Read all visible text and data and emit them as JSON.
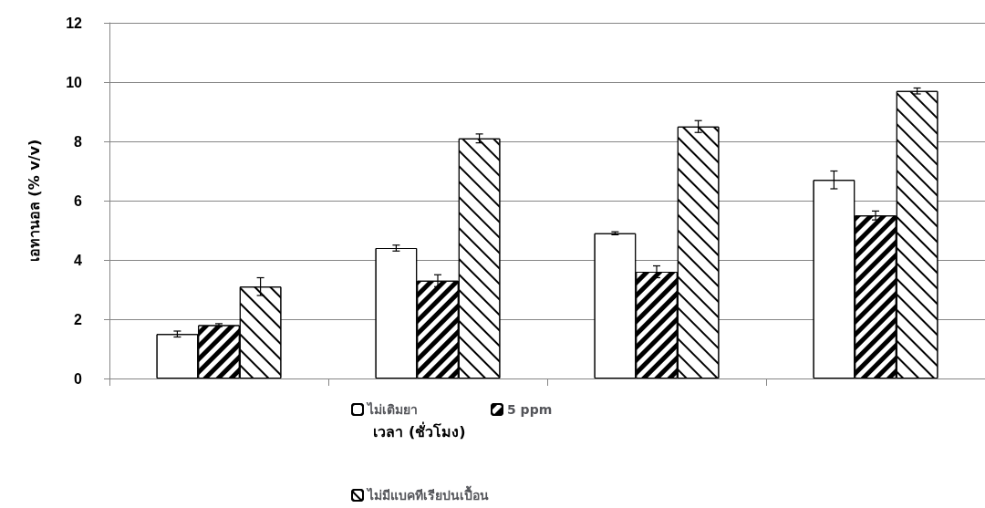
{
  "chart_data": {
    "type": "bar",
    "xlabel": "เวลา (ชั่วโมง)",
    "ylabel": "เอทานอล (% v/v)",
    "categories": [
      null,
      null,
      null,
      null
    ],
    "series": [
      {
        "name": "ไม่เติมยา",
        "color": "#ffffff",
        "values": [
          1.5,
          4.4,
          4.9,
          6.7
        ],
        "errors": [
          0.1,
          0.1,
          0.05,
          0.3
        ]
      },
      {
        "name": "5 ppm",
        "color": "#ffffff",
        "values": [
          1.8,
          3.3,
          3.6,
          5.5
        ],
        "errors": [
          0.05,
          0.2,
          0.2,
          0.15
        ]
      },
      {
        "name": "ไม่มีแบคทีเรียปนเปื้อน",
        "color": "#ffffff",
        "values": [
          3.1,
          8.1,
          8.5,
          9.7
        ],
        "errors": [
          0.3,
          0.15,
          0.2,
          0.1
        ]
      }
    ],
    "ylim": [
      0,
      12
    ],
    "yticks": [
      0,
      2,
      4,
      6,
      8,
      10,
      12
    ],
    "grid": "y",
    "legend": "bottom"
  }
}
